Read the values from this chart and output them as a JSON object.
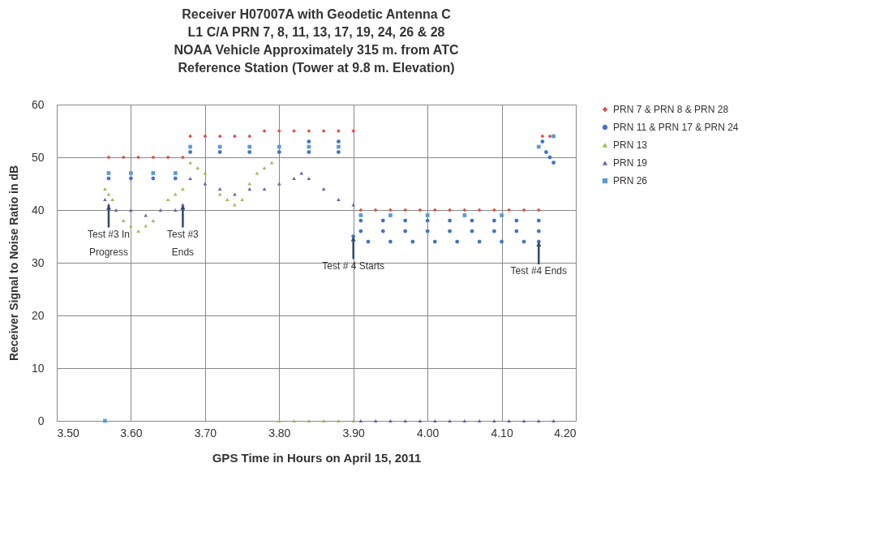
{
  "chart_data": {
    "type": "scatter",
    "title": "Receiver H07007A with Geodetic Antenna C\nL1 C/A PRN 7, 8, 11, 13, 17, 19,  24, 26 & 28\nNOAA  Vehicle Approximately 315 m. from ATC\nReference Station (Tower at 9.8 m. Elevation)",
    "xlabel": "GPS Time in Hours on April 15, 2011",
    "ylabel": "Receiver Signal to Noise Ratio in dB",
    "xlim": [
      3.5,
      4.2
    ],
    "xticks": [
      {
        "value": 3.5,
        "label": "3.50"
      },
      {
        "value": 3.6,
        "label": "3.60"
      },
      {
        "value": 3.7,
        "label": "3.70"
      },
      {
        "value": 3.8,
        "label": "3.80"
      },
      {
        "value": 3.9,
        "label": "3.90"
      },
      {
        "value": 4.0,
        "label": "4.00"
      },
      {
        "value": 4.1,
        "label": "4.10"
      },
      {
        "value": 4.2,
        "label": "4.20"
      }
    ],
    "ylim": [
      0,
      60
    ],
    "yticks": [
      0,
      10,
      20,
      30,
      40,
      50,
      60
    ],
    "grid": true,
    "legend": "right",
    "series": [
      {
        "name": "PRN 7 & PRN 8 & PRN 28",
        "color": "#e8453c",
        "marker": "diamond",
        "x": [
          3.57,
          3.59,
          3.61,
          3.63,
          3.65,
          3.67,
          3.68,
          3.7,
          3.72,
          3.74,
          3.76,
          3.78,
          3.8,
          3.82,
          3.84,
          3.86,
          3.88,
          3.9,
          3.91,
          3.93,
          3.95,
          3.97,
          3.99,
          4.01,
          4.03,
          4.05,
          4.07,
          4.09,
          4.11,
          4.13,
          4.15,
          4.155,
          4.165
        ],
        "values": [
          50,
          50,
          50,
          50,
          50,
          50,
          54,
          54,
          54,
          54,
          54,
          55,
          55,
          55,
          55,
          55,
          55,
          55,
          40,
          40,
          40,
          40,
          40,
          40,
          40,
          40,
          40,
          40,
          40,
          40,
          40,
          54,
          54
        ]
      },
      {
        "name": "PRN 11 & PRN 17 & PRN 24",
        "color": "#4472c4",
        "marker": "circle",
        "x": [
          3.57,
          3.6,
          3.63,
          3.66,
          3.68,
          3.72,
          3.76,
          3.8,
          3.84,
          3.88,
          3.84,
          3.88,
          3.91,
          3.94,
          3.97,
          4.0,
          4.03,
          4.06,
          4.09,
          4.12,
          4.15,
          3.91,
          3.94,
          3.97,
          4.0,
          4.03,
          4.06,
          4.09,
          4.12,
          4.15,
          3.92,
          3.95,
          3.98,
          4.01,
          4.04,
          4.07,
          4.1,
          4.13,
          3.9,
          4.15,
          4.155,
          4.16,
          4.165,
          4.17
        ],
        "values": [
          46,
          46,
          46,
          46,
          51,
          51,
          51,
          51,
          51,
          51,
          53,
          53,
          38,
          38,
          38,
          38,
          38,
          38,
          38,
          38,
          38,
          36,
          36,
          36,
          36,
          36,
          36,
          36,
          36,
          36,
          34,
          34,
          34,
          34,
          34,
          34,
          34,
          34,
          35,
          34,
          53,
          51,
          50,
          49
        ]
      },
      {
        "name": "PRN 13",
        "color": "#9bbb59",
        "marker": "triangle-up",
        "x": [
          3.565,
          3.57,
          3.575,
          3.59,
          3.6,
          3.61,
          3.62,
          3.63,
          3.65,
          3.66,
          3.67,
          3.68,
          3.69,
          3.7,
          3.72,
          3.73,
          3.74,
          3.75,
          3.76,
          3.77,
          3.78,
          3.79,
          3.8,
          3.82,
          3.84,
          3.86,
          3.88,
          3.9
        ],
        "values": [
          44,
          43,
          42,
          38,
          37,
          36,
          37,
          38,
          42,
          43,
          44,
          49,
          48,
          47,
          43,
          42,
          41,
          42,
          45,
          47,
          48,
          49,
          0,
          0,
          0,
          0,
          0,
          0
        ]
      },
      {
        "name": "PRN 19",
        "color": "#7060a8",
        "marker": "triangle-up",
        "x": [
          3.565,
          3.57,
          3.58,
          3.6,
          3.62,
          3.64,
          3.66,
          3.67,
          3.68,
          3.7,
          3.72,
          3.74,
          3.76,
          3.78,
          3.8,
          3.82,
          3.83,
          3.84,
          3.86,
          3.88,
          3.9,
          3.91,
          3.93,
          3.95,
          3.97,
          3.99,
          4.01,
          4.03,
          4.05,
          4.07,
          4.09,
          4.11,
          4.13,
          4.15,
          4.17
        ],
        "values": [
          42,
          41,
          40,
          40,
          39,
          40,
          40,
          41,
          46,
          45,
          44,
          43,
          44,
          44,
          45,
          46,
          47,
          46,
          44,
          42,
          41,
          0,
          0,
          0,
          0,
          0,
          0,
          0,
          0,
          0,
          0,
          0,
          0,
          0,
          0
        ]
      },
      {
        "name": "PRN 26",
        "color": "#5b9bd5",
        "marker": "square",
        "x": [
          3.565,
          3.57,
          3.6,
          3.63,
          3.66,
          3.68,
          3.72,
          3.76,
          3.8,
          3.84,
          3.88,
          3.91,
          3.95,
          4.0,
          4.05,
          4.1,
          4.15,
          4.17
        ],
        "values": [
          0,
          47,
          47,
          47,
          47,
          52,
          52,
          52,
          52,
          52,
          52,
          39,
          39,
          39,
          39,
          39,
          52,
          54
        ]
      }
    ],
    "annotations": [
      {
        "text": "Test #3 In\nProgress",
        "x": 3.57,
        "y": 41
      },
      {
        "text": "Test #3\nEnds",
        "x": 3.67,
        "y": 41
      },
      {
        "text": "Test # 4 Starts",
        "x": 3.9,
        "y": 35
      },
      {
        "text": "Test #4 Ends",
        "x": 4.15,
        "y": 34
      }
    ]
  }
}
